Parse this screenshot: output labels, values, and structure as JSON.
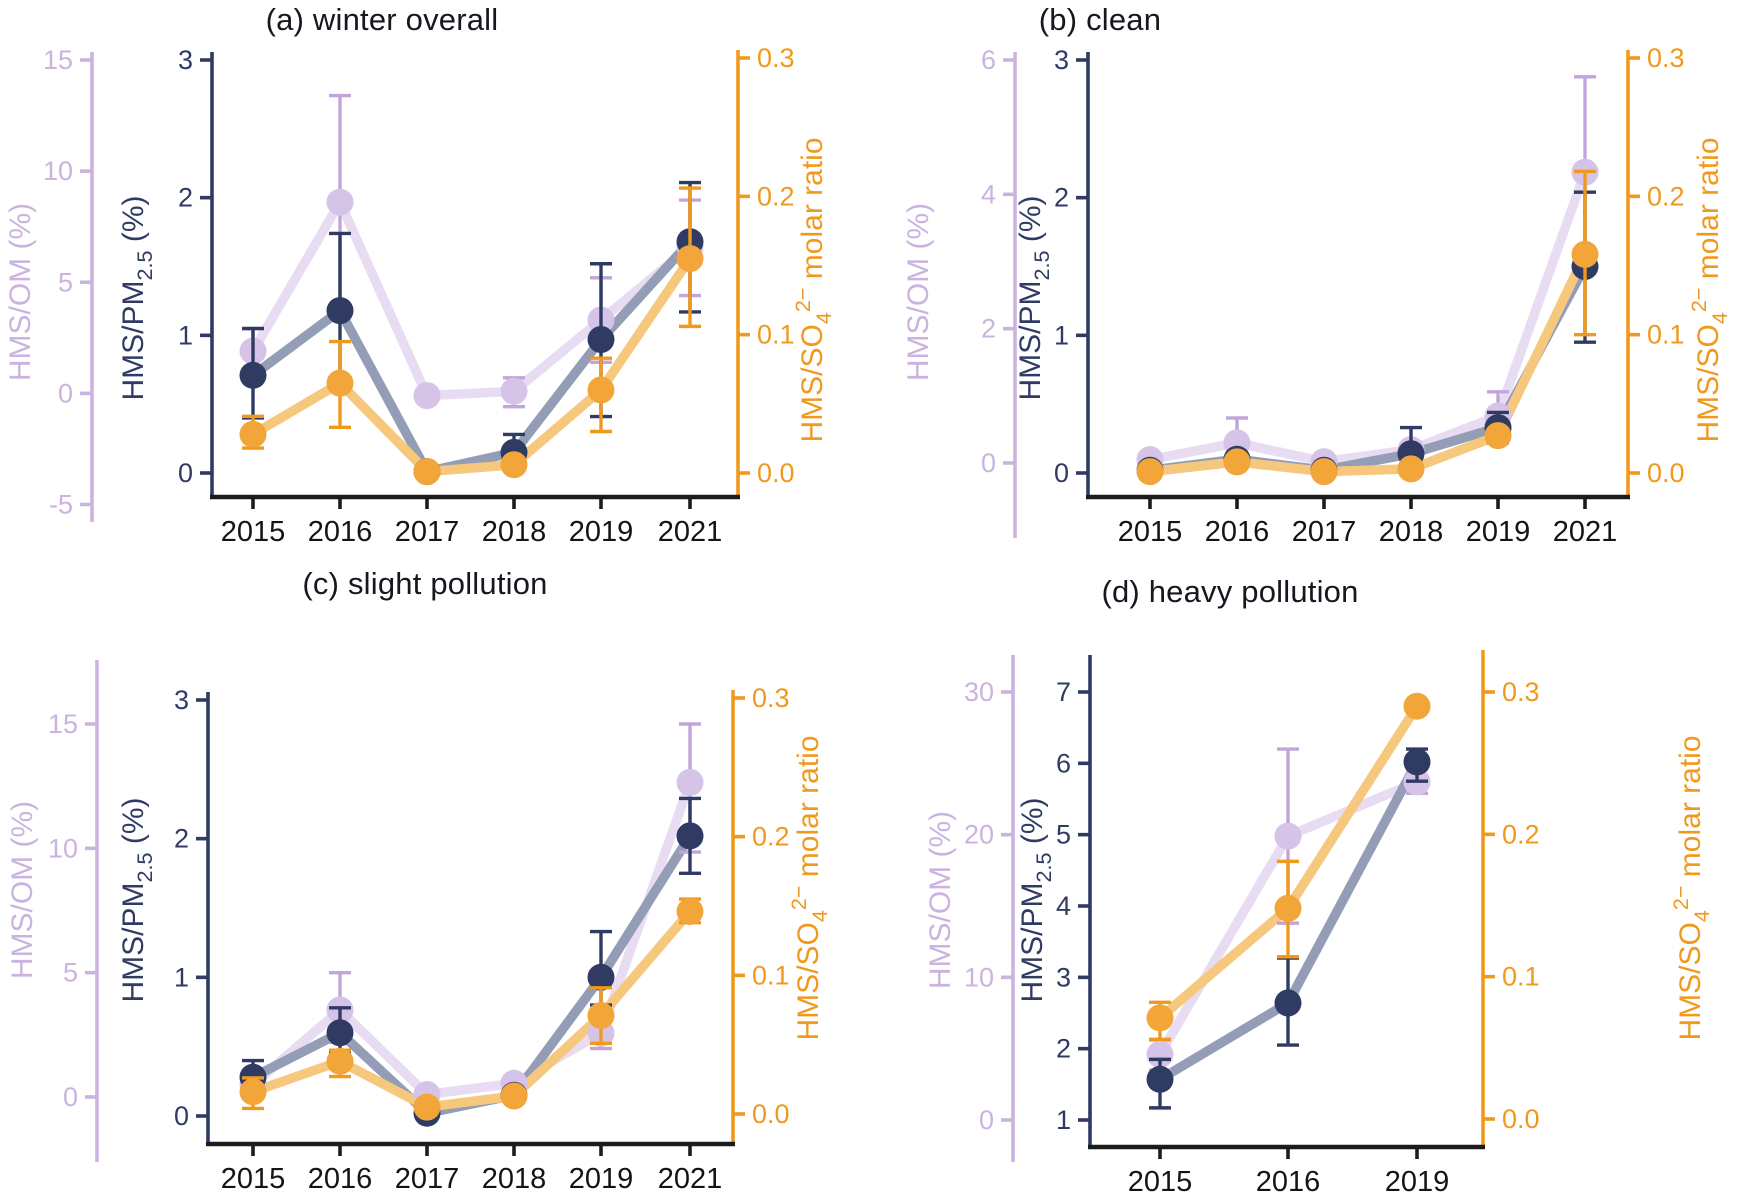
{
  "figure": {
    "background": "#ffffff"
  },
  "colors": {
    "purple_dot": "#d6c3e8",
    "purple_line": "#e8dcf2",
    "purple_err": "#c2a5da",
    "purple_axis": "#cbb3e0",
    "navy_dot": "#2f3b63",
    "navy_line": "#939db6",
    "navy_err": "#2f3b63",
    "navy_axis": "#2f3b63",
    "orange_dot": "#f2a63a",
    "orange_line": "#f6c87d",
    "orange_err": "#ef9a1c",
    "orange_axis": "#f0991c",
    "x_axis": "#1c1c1c",
    "x_tick_text": "#141414",
    "title_text": "#15181f"
  },
  "chart_data": [
    {
      "id": "a",
      "type": "line",
      "title": "(a) winter overall",
      "categories": [
        "2015",
        "2016",
        "2017",
        "2018",
        "2019",
        "2021"
      ],
      "axes": {
        "left_outer": {
          "color": "purple",
          "range": [
            -5,
            15
          ],
          "ticks": [
            "15",
            "10",
            "5",
            "0",
            "-5"
          ],
          "label_segments": [
            {
              "t": "HMS/OM (%)"
            }
          ]
        },
        "left_inner": {
          "color": "navy",
          "range": [
            0,
            3
          ],
          "ticks": [
            "3",
            "2",
            "1",
            "0"
          ],
          "label_segments": [
            {
              "t": "HMS/PM"
            },
            {
              "t": "2.5",
              "s": "sub"
            },
            {
              "t": " (%)"
            }
          ]
        },
        "right": {
          "color": "orange",
          "range": [
            0,
            0.3
          ],
          "ticks": [
            "0.3",
            "0.2",
            "0.1",
            "0.0"
          ],
          "label_segments": [
            {
              "t": "HMS/SO"
            },
            {
              "t": "4",
              "s": "sub"
            },
            {
              "t": "2−",
              "s": "sup"
            },
            {
              "t": " molar ratio"
            }
          ]
        }
      },
      "series": [
        {
          "key": "hms-om",
          "name": "HMS/OM",
          "axis": "left_outer",
          "color": "purple",
          "values": [
            1.9,
            8.6,
            -0.1,
            0.1,
            3.3,
            6.6
          ],
          "err_lo": [
            1.0,
            3.8,
            null,
            -0.6,
            1.4,
            4.4
          ],
          "err_hi": [
            2.9,
            13.4,
            null,
            0.7,
            5.2,
            8.7
          ]
        },
        {
          "key": "hms-pm25",
          "name": "HMS/PM2.5",
          "axis": "left_inner",
          "color": "navy",
          "values": [
            0.71,
            1.18,
            0.01,
            0.15,
            0.97,
            1.68
          ],
          "err_lo": [
            0.4,
            0.63,
            null,
            0.03,
            0.41,
            1.17
          ],
          "err_hi": [
            1.05,
            1.74,
            null,
            0.28,
            1.52,
            2.11
          ]
        },
        {
          "key": "hms-so4",
          "name": "HMS/SO4 2- molar ratio",
          "axis": "right",
          "color": "orange",
          "values": [
            0.028,
            0.065,
            0.001,
            0.006,
            0.06,
            0.155
          ],
          "err_lo": [
            0.018,
            0.033,
            null,
            null,
            0.03,
            0.106
          ],
          "err_hi": [
            0.041,
            0.095,
            null,
            null,
            0.083,
            0.206
          ]
        }
      ]
    },
    {
      "id": "b",
      "type": "line",
      "title": "(b) clean",
      "categories": [
        "2015",
        "2016",
        "2017",
        "2018",
        "2019",
        "2021"
      ],
      "axes": {
        "left_outer": {
          "color": "purple",
          "range": [
            0,
            6
          ],
          "ticks": [
            "6",
            "4",
            "2",
            "0"
          ],
          "label_segments": [
            {
              "t": "HMS/OM (%)"
            }
          ]
        },
        "left_inner": {
          "color": "navy",
          "range": [
            0,
            3
          ],
          "ticks": [
            "3",
            "2",
            "1",
            "0"
          ],
          "label_segments": [
            {
              "t": "HMS/PM"
            },
            {
              "t": "2.5",
              "s": "sub"
            },
            {
              "t": " (%)"
            }
          ]
        },
        "right": {
          "color": "orange",
          "range": [
            0,
            0.3
          ],
          "ticks": [
            "0.3",
            "0.2",
            "0.1",
            "0.0"
          ],
          "label_segments": [
            {
              "t": "HMS/SO"
            },
            {
              "t": "4",
              "s": "sub"
            },
            {
              "t": "2−",
              "s": "sup"
            },
            {
              "t": " molar ratio"
            }
          ]
        }
      },
      "series": [
        {
          "key": "hms-om",
          "name": "HMS/OM",
          "axis": "left_outer",
          "color": "purple",
          "values": [
            0.05,
            0.3,
            0.02,
            0.2,
            0.7,
            4.33
          ],
          "err_lo": [
            null,
            0.08,
            null,
            null,
            0.38,
            2.95
          ],
          "err_hi": [
            null,
            0.67,
            null,
            0.58,
            1.06,
            5.75
          ]
        },
        {
          "key": "hms-pm25",
          "name": "HMS/PM2.5",
          "axis": "left_inner",
          "color": "navy",
          "values": [
            0.02,
            0.1,
            0.02,
            0.14,
            0.33,
            1.5
          ],
          "err_lo": [
            null,
            null,
            null,
            0.01,
            0.22,
            0.95
          ],
          "err_hi": [
            null,
            null,
            null,
            0.33,
            0.44,
            2.04
          ]
        },
        {
          "key": "hms-so4",
          "name": "HMS/SO4 2- molar ratio",
          "axis": "right",
          "color": "orange",
          "values": [
            0.001,
            0.008,
            0.001,
            0.003,
            0.027,
            0.158
          ],
          "err_lo": [
            null,
            null,
            null,
            null,
            null,
            0.1
          ],
          "err_hi": [
            null,
            null,
            null,
            null,
            null,
            0.218
          ]
        }
      ]
    },
    {
      "id": "c",
      "type": "line",
      "title": "(c) slight pollution",
      "categories": [
        "2015",
        "2016",
        "2017",
        "2018",
        "2019",
        "2021"
      ],
      "axes": {
        "left_outer": {
          "color": "purple",
          "range": [
            0,
            15
          ],
          "ticks": [
            "15",
            "10",
            "5",
            "0"
          ],
          "label_segments": [
            {
              "t": "HMS/OM (%)"
            }
          ]
        },
        "left_inner": {
          "color": "navy",
          "range": [
            0,
            3
          ],
          "ticks": [
            "3",
            "2",
            "1",
            "0"
          ],
          "label_segments": [
            {
              "t": "HMS/PM"
            },
            {
              "t": "2.5",
              "s": "sub"
            },
            {
              "t": " (%)"
            }
          ]
        },
        "right": {
          "color": "orange",
          "range": [
            0,
            0.3
          ],
          "ticks": [
            "0.3",
            "0.2",
            "0.1",
            "0.0"
          ],
          "label_segments": [
            {
              "t": "HMS/SO"
            },
            {
              "t": "4",
              "s": "sub"
            },
            {
              "t": "2−",
              "s": "sup"
            },
            {
              "t": " molar ratio"
            }
          ]
        }
      },
      "series": [
        {
          "key": "hms-om",
          "name": "HMS/OM",
          "axis": "left_outer",
          "color": "purple",
          "values": [
            0.5,
            3.5,
            0.1,
            0.55,
            2.57,
            12.65
          ],
          "err_lo": [
            0.2,
            2.2,
            null,
            null,
            1.95,
            9.85
          ],
          "err_hi": [
            0.9,
            5.0,
            null,
            null,
            3.2,
            15.0
          ]
        },
        {
          "key": "hms-pm25",
          "name": "HMS/PM2.5",
          "axis": "left_inner",
          "color": "navy",
          "values": [
            0.28,
            0.6,
            0.02,
            0.15,
            1.0,
            2.02
          ],
          "err_lo": [
            0.16,
            0.46,
            null,
            null,
            0.8,
            1.75
          ],
          "err_hi": [
            0.4,
            0.78,
            null,
            null,
            1.33,
            2.29
          ]
        },
        {
          "key": "hms-so4",
          "name": "HMS/SO4 2- molar ratio",
          "axis": "right",
          "color": "orange",
          "values": [
            0.016,
            0.038,
            0.005,
            0.013,
            0.071,
            0.146
          ],
          "err_lo": [
            0.004,
            0.027,
            null,
            null,
            0.051,
            0.138
          ],
          "err_hi": [
            0.026,
            0.046,
            null,
            null,
            0.091,
            0.155
          ]
        }
      ]
    },
    {
      "id": "d",
      "type": "line",
      "title": "(d) heavy pollution",
      "categories": [
        "2015",
        "2016",
        "2019"
      ],
      "axes": {
        "left_outer": {
          "color": "purple",
          "range": [
            0,
            30
          ],
          "ticks": [
            "30",
            "20",
            "10",
            "0"
          ],
          "label_segments": [
            {
              "t": "HMS/OM (%)"
            }
          ]
        },
        "left_inner": {
          "color": "navy",
          "range": [
            1,
            7
          ],
          "ticks": [
            "7",
            "6",
            "5",
            "4",
            "3",
            "2",
            "1"
          ],
          "label_segments": [
            {
              "t": "HMS/PM"
            },
            {
              "t": "2.5",
              "s": "sub"
            },
            {
              "t": " (%)"
            }
          ]
        },
        "right": {
          "color": "orange",
          "range": [
            0,
            0.3
          ],
          "ticks": [
            "0.3",
            "0.2",
            "0.1",
            "0.0"
          ],
          "label_segments": [
            {
              "t": "HMS/SO"
            },
            {
              "t": "4",
              "s": "sub"
            },
            {
              "t": "2−",
              "s": "sup"
            },
            {
              "t": " molar ratio"
            }
          ]
        }
      },
      "series": [
        {
          "key": "hms-om",
          "name": "HMS/OM",
          "axis": "left_outer",
          "color": "purple",
          "values": [
            4.6,
            19.9,
            23.7
          ],
          "err_lo": [
            3.5,
            13.8,
            22.9
          ],
          "err_hi": [
            5.6,
            26.0,
            24.6
          ]
        },
        {
          "key": "hms-pm25",
          "name": "HMS/PM2.5",
          "axis": "left_inner",
          "color": "navy",
          "values": [
            1.57,
            2.64,
            6.02
          ],
          "err_lo": [
            1.17,
            2.05,
            5.75
          ],
          "err_hi": [
            1.85,
            3.27,
            6.2
          ]
        },
        {
          "key": "hms-so4",
          "name": "HMS/SO4 2- molar ratio",
          "axis": "right",
          "color": "orange",
          "values": [
            0.071,
            0.148,
            0.29
          ],
          "err_lo": [
            0.056,
            0.114,
            null
          ],
          "err_hi": [
            0.082,
            0.181,
            null
          ]
        }
      ]
    }
  ]
}
